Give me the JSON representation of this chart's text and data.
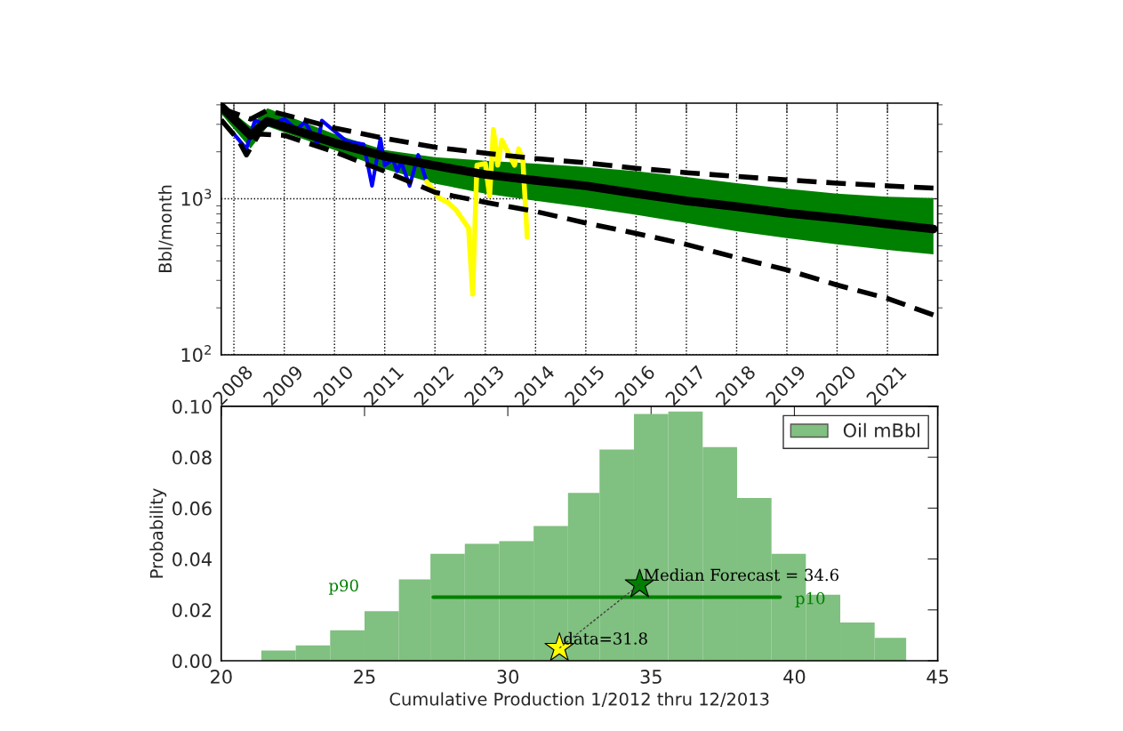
{
  "chart_data": [
    {
      "type": "line",
      "ylabel": "Bbl/month",
      "log": "y",
      "grid": true,
      "marker": "none",
      "xlim": [
        "2007-10",
        "2022-01"
      ],
      "ylim": [
        100,
        4100
      ],
      "xticks": [
        {
          "value": "2008",
          "label": "2008"
        },
        {
          "value": "2009",
          "label": "2009"
        },
        {
          "value": "2010",
          "label": "2010"
        },
        {
          "value": "2011",
          "label": "2011"
        },
        {
          "value": "2012",
          "label": "2012"
        },
        {
          "value": "2013",
          "label": "2013"
        },
        {
          "value": "2014",
          "label": "2014"
        },
        {
          "value": "2015",
          "label": "2015"
        },
        {
          "value": "2016",
          "label": "2016"
        },
        {
          "value": "2017",
          "label": "2017"
        },
        {
          "value": "2018",
          "label": "2018"
        },
        {
          "value": "2019",
          "label": "2019"
        },
        {
          "value": "2020",
          "label": "2020"
        },
        {
          "value": "2021",
          "label": "2021"
        }
      ],
      "yticks": [
        {
          "value": 100,
          "label": "10$^{2}$"
        },
        {
          "value": 1000,
          "label": "10$^{3}$"
        }
      ],
      "series": [
        {
          "type": "line",
          "color": "#0000ff",
          "x": [
            "2008-01",
            "2008-04",
            "2008-06",
            "2008-09",
            "2009-01",
            "2009-04",
            "2009-06",
            "2009-09",
            "2009-10",
            "2010-04",
            "2010-08",
            "2010-10",
            "2010-12",
            "2011-01",
            "2011-03",
            "2011-04",
            "2011-05",
            "2011-07",
            "2011-09",
            "2011-11"
          ],
          "values": [
            2600,
            2090,
            3170,
            2970,
            3240,
            2780,
            3100,
            2230,
            3170,
            2330,
            2230,
            1210,
            2430,
            1640,
            1790,
            1500,
            1720,
            1210,
            1910,
            1290
          ]
        },
        {
          "type": "line",
          "color": "#ffff00",
          "x": [
            "2011-11",
            "2012-01",
            "2012-02",
            "2012-04",
            "2012-06",
            "2012-09",
            "2012-10",
            "2012-11",
            "2013-01",
            "2013-02",
            "2013-03",
            "2013-04",
            "2013-05",
            "2013-08",
            "2013-09",
            "2013-10",
            "2013-11"
          ],
          "values": [
            1290,
            1100,
            1010,
            950,
            850,
            650,
            245,
            1640,
            1680,
            1040,
            2780,
            1640,
            2380,
            1640,
            2090,
            1750,
            570
          ]
        },
        {
          "type": "line",
          "color": "#000000",
          "x": [
            "2007-10",
            "2008-05",
            "2008-09",
            "2010-01",
            "2011-01",
            "2012-01",
            "2013-01",
            "2014-01",
            "2015-01",
            "2016-01",
            "2017-01",
            "2018-01",
            "2019-01",
            "2020-01",
            "2021-01",
            "2021-12"
          ],
          "values": [
            3900,
            2550,
            3140,
            2280,
            1870,
            1630,
            1430,
            1310,
            1210,
            1080,
            970,
            890,
            810,
            750,
            690,
            640
          ],
          "lower": [
            3500,
            2100,
            2900,
            2050,
            1550,
            1250,
            1080,
            970,
            880,
            790,
            700,
            620,
            560,
            510,
            470,
            440
          ],
          "upper": [
            4100,
            2900,
            3800,
            2600,
            2050,
            1850,
            1750,
            1680,
            1600,
            1500,
            1380,
            1260,
            1160,
            1080,
            1030,
            1010
          ]
        },
        {
          "type": "line",
          "color": "#000000",
          "line_style": "dashed",
          "x": [
            "2007-10",
            "2008-05",
            "2008-09",
            "2009-01",
            "2010-01",
            "2011-01",
            "2012-01",
            "2013-01",
            "2014-01",
            "2015-01",
            "2016-01",
            "2017-01",
            "2018-01",
            "2019-01",
            "2020-01",
            "2021-01",
            "2021-12"
          ],
          "values": [
            3800,
            3240,
            3690,
            3460,
            2840,
            2440,
            2140,
            1960,
            1810,
            1700,
            1570,
            1470,
            1390,
            1320,
            1260,
            1210,
            1170
          ]
        },
        {
          "type": "line",
          "color": "#000000",
          "line_style": "dashed",
          "x": [
            "2007-10",
            "2008-02",
            "2008-04",
            "2008-07",
            "2009-01",
            "2010-01",
            "2011-01",
            "2012-01",
            "2013-01",
            "2014-01",
            "2015-01",
            "2016-01",
            "2017-01",
            "2018-01",
            "2019-01",
            "2020-01",
            "2021-01",
            "2021-12"
          ],
          "values": [
            3200,
            2390,
            1910,
            2600,
            2550,
            2000,
            1500,
            1100,
            950,
            830,
            700,
            600,
            510,
            420,
            350,
            280,
            230,
            180
          ]
        }
      ]
    },
    {
      "type": "histogram",
      "xlabel": "Cumulative Production 1/2012 thru 12/2013",
      "ylabel": "Probability",
      "legend": "top right",
      "grid": false,
      "xlim": [
        20,
        45
      ],
      "ylim": [
        0,
        0.1
      ],
      "xticks": [
        20,
        25,
        30,
        35,
        40,
        45
      ],
      "yticks": [
        {
          "value": 0,
          "label": "0.00"
        },
        {
          "value": 0.02,
          "label": "0.02"
        },
        {
          "value": 0.04,
          "label": "0.04"
        },
        {
          "value": 0.06,
          "label": "0.06"
        },
        {
          "value": 0.08,
          "label": "0.08"
        },
        {
          "value": 0.1,
          "label": "0.10"
        }
      ],
      "series": [
        {
          "type": "histogram",
          "name": "Oil mBbl",
          "color": "#80c080",
          "bins": [
            21.4,
            22.6,
            23.8,
            25.0,
            26.2,
            27.3,
            28.5,
            29.7,
            30.9,
            32.1,
            33.2,
            34.4,
            35.6,
            36.8,
            38.0,
            39.2,
            40.4,
            41.6,
            42.8,
            43.9
          ],
          "values": [
            0.004,
            0.006,
            0.012,
            0.0195,
            0.032,
            0.042,
            0.046,
            0.047,
            0.053,
            0.066,
            0.083,
            0.097,
            0.098,
            0.084,
            0.064,
            0.042,
            0.026,
            0.015,
            0.009
          ]
        },
        {
          "type": "line",
          "color": "#008000",
          "x": [
            27.4,
            39.5
          ],
          "values": [
            0.025,
            0.025
          ]
        },
        {
          "type": "line",
          "color": "#404040",
          "line_style": "dashed",
          "x": [
            31.8,
            34.6
          ],
          "values": [
            0.005,
            0.03
          ]
        },
        {
          "type": "scatter",
          "marker": "star",
          "color": "#008000",
          "x": [
            34.6
          ],
          "values": [
            0.03
          ]
        },
        {
          "type": "scatter",
          "marker": "star",
          "color": "#ffff00",
          "x": [
            31.8
          ],
          "values": [
            0.005
          ]
        }
      ],
      "annotations": [
        {
          "text": "Median Forecast = 34.6",
          "x": 34.6,
          "y": 0.03
        },
        {
          "text": "data=31.8",
          "x": 31.8,
          "y": 0.005
        },
        "p90",
        "p10"
      ]
    }
  ]
}
